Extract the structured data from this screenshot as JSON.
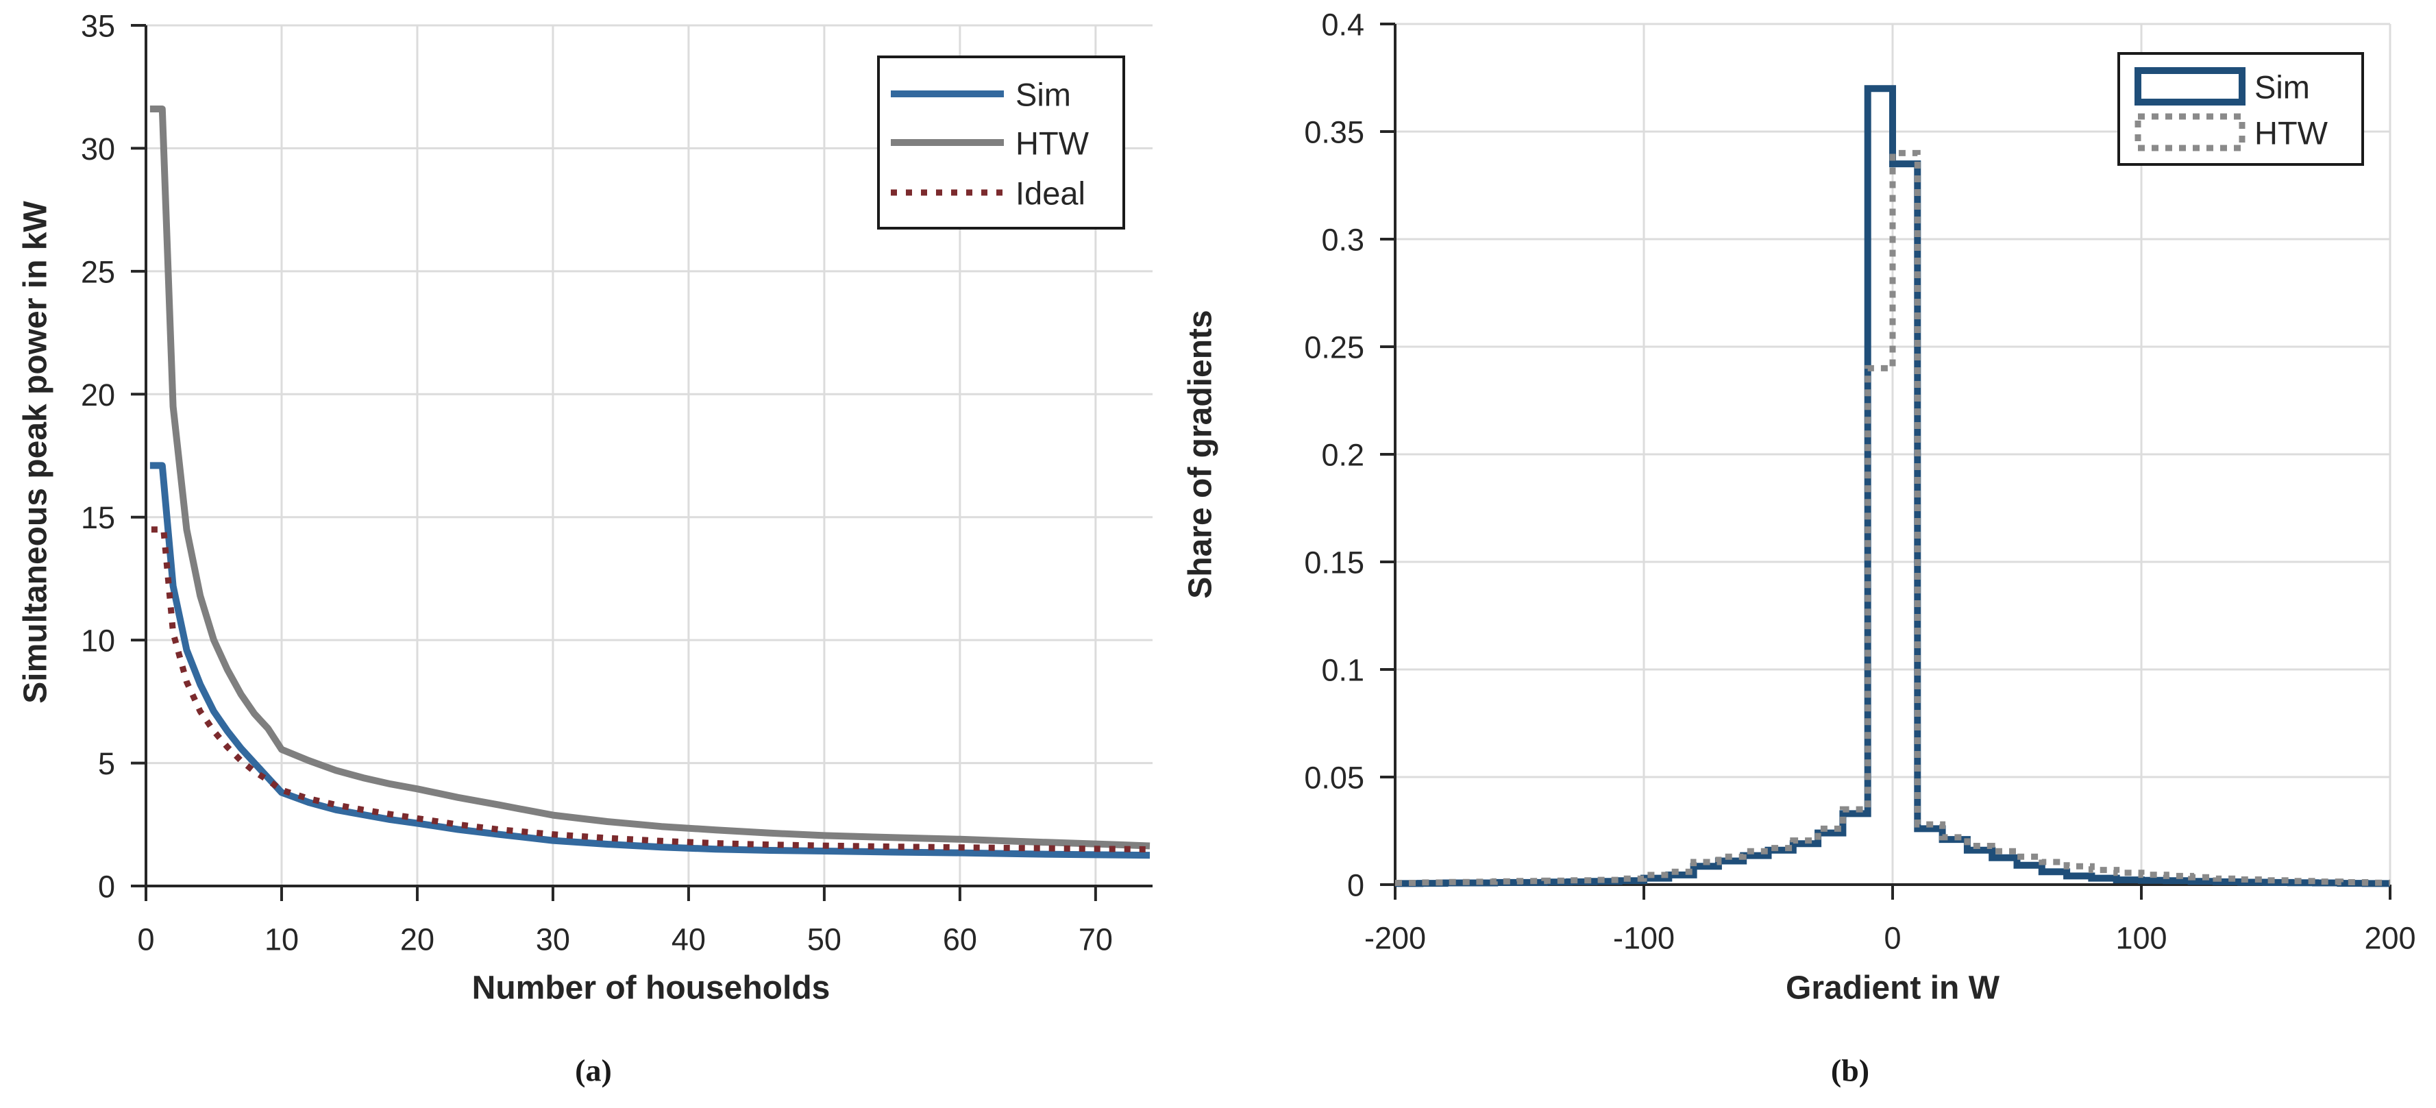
{
  "figure": {
    "caption_a": "(a)",
    "caption_b": "(b)"
  },
  "colors": {
    "axis": "#262626",
    "grid": "#DCDCDC",
    "legend_border": "#1a1a1a",
    "sim_a": "#33699E",
    "htw_a": "#7F7F7F",
    "ideal_a": "#7B2A2D",
    "sim_b": "#1F4E79",
    "htw_b": "#8A8A8A"
  },
  "chart_data": [
    {
      "id": "a",
      "type": "line",
      "title": "",
      "xlabel": "Number of households",
      "ylabel": "Simultaneous peak power in kW",
      "xlim": [
        0,
        74.2
      ],
      "ylim": [
        0,
        35
      ],
      "xticks": [
        0,
        10,
        20,
        30,
        40,
        50,
        60,
        70
      ],
      "xtick_labels": [
        "0",
        "10",
        "20",
        "30",
        "40",
        "50",
        "60",
        "70"
      ],
      "yticks": [
        0,
        5,
        10,
        15,
        20,
        25,
        30,
        35
      ],
      "ytick_labels": [
        "0",
        "5",
        "10",
        "15",
        "20",
        "25",
        "30",
        "35"
      ],
      "grid": true,
      "legend_position": "top-right",
      "series": [
        {
          "name": "Sim",
          "color": "#33699E",
          "style": "solid",
          "x": [
            0.3,
            1.2,
            2,
            3,
            4,
            5,
            6,
            7,
            8,
            9,
            10,
            12,
            14,
            16,
            18,
            20,
            23,
            26,
            30,
            34,
            38,
            42,
            46,
            50,
            55,
            60,
            65,
            70,
            74
          ],
          "y": [
            17.1,
            17.1,
            12.2,
            9.6,
            8.2,
            7.1,
            6.3,
            5.6,
            5.0,
            4.4,
            3.8,
            3.4,
            3.1,
            2.9,
            2.7,
            2.55,
            2.3,
            2.1,
            1.85,
            1.7,
            1.58,
            1.5,
            1.45,
            1.42,
            1.38,
            1.35,
            1.3,
            1.27,
            1.25
          ]
        },
        {
          "name": "HTW",
          "color": "#7F7F7F",
          "style": "solid",
          "x": [
            0.3,
            1.2,
            2,
            3,
            4,
            5,
            6,
            7,
            8,
            9,
            10,
            12,
            14,
            16,
            18,
            20,
            23,
            26,
            30,
            34,
            38,
            42,
            46,
            50,
            55,
            60,
            65,
            70,
            74
          ],
          "y": [
            31.6,
            31.6,
            19.5,
            14.5,
            11.8,
            10.0,
            8.8,
            7.8,
            7.0,
            6.4,
            5.55,
            5.1,
            4.7,
            4.4,
            4.15,
            3.95,
            3.6,
            3.3,
            2.88,
            2.62,
            2.42,
            2.28,
            2.15,
            2.05,
            1.97,
            1.9,
            1.8,
            1.71,
            1.63
          ]
        },
        {
          "name": "Ideal",
          "color": "#7B2A2D",
          "style": "dotted",
          "x": [
            0.4,
            1.3,
            2,
            3,
            4,
            5,
            6,
            7,
            8,
            9,
            10,
            12,
            14,
            16,
            18,
            20,
            23,
            26,
            30,
            34,
            38,
            42,
            46,
            50,
            55,
            60,
            65,
            70,
            74
          ],
          "y": [
            14.5,
            14.5,
            10.3,
            8.3,
            7.1,
            6.3,
            5.65,
            5.1,
            4.65,
            4.3,
            3.9,
            3.55,
            3.3,
            3.1,
            2.92,
            2.75,
            2.5,
            2.3,
            2.1,
            1.95,
            1.83,
            1.74,
            1.68,
            1.64,
            1.6,
            1.57,
            1.54,
            1.51,
            1.49
          ]
        }
      ]
    },
    {
      "id": "b",
      "type": "histogram-step",
      "title": "",
      "xlabel": "Gradient in W",
      "ylabel": "Share of gradients",
      "xlim": [
        -200,
        200
      ],
      "ylim": [
        0,
        0.4
      ],
      "xticks": [
        -200,
        -100,
        0,
        100,
        200
      ],
      "xtick_labels": [
        "-200",
        "-100",
        "0",
        "100",
        "200"
      ],
      "yticks": [
        0,
        0.05,
        0.1,
        0.15,
        0.2,
        0.25,
        0.3,
        0.35,
        0.4
      ],
      "ytick_labels": [
        "0",
        "0.05",
        "0.1",
        "0.15",
        "0.2",
        "0.25",
        "0.3",
        "0.35",
        "0.4"
      ],
      "grid": true,
      "legend_position": "top-right",
      "bin_start": -200,
      "bin_width": 10,
      "series": [
        {
          "name": "Sim",
          "color": "#1F4E79",
          "style": "solid",
          "values": [
            0.0005,
            0.0006,
            0.0008,
            0.0008,
            0.001,
            0.001,
            0.0012,
            0.0013,
            0.0015,
            0.0018,
            0.003,
            0.0045,
            0.0085,
            0.011,
            0.0135,
            0.016,
            0.019,
            0.024,
            0.033,
            0.37,
            0.335,
            0.026,
            0.021,
            0.016,
            0.0125,
            0.009,
            0.006,
            0.004,
            0.003,
            0.0022,
            0.002,
            0.0018,
            0.0015,
            0.0013,
            0.0011,
            0.001,
            0.0009,
            0.0008,
            0.0006,
            0.0005
          ]
        },
        {
          "name": "HTW",
          "color": "#8A8A8A",
          "style": "dotted",
          "values": [
            0.0008,
            0.001,
            0.0012,
            0.0013,
            0.0015,
            0.0017,
            0.0018,
            0.002,
            0.0022,
            0.0028,
            0.0045,
            0.006,
            0.0105,
            0.013,
            0.0155,
            0.017,
            0.0205,
            0.026,
            0.035,
            0.24,
            0.34,
            0.028,
            0.022,
            0.018,
            0.0155,
            0.013,
            0.0105,
            0.0085,
            0.0068,
            0.0055,
            0.0046,
            0.004,
            0.0034,
            0.0028,
            0.0024,
            0.002,
            0.0017,
            0.0014,
            0.0011,
            0.0009
          ]
        }
      ]
    }
  ]
}
